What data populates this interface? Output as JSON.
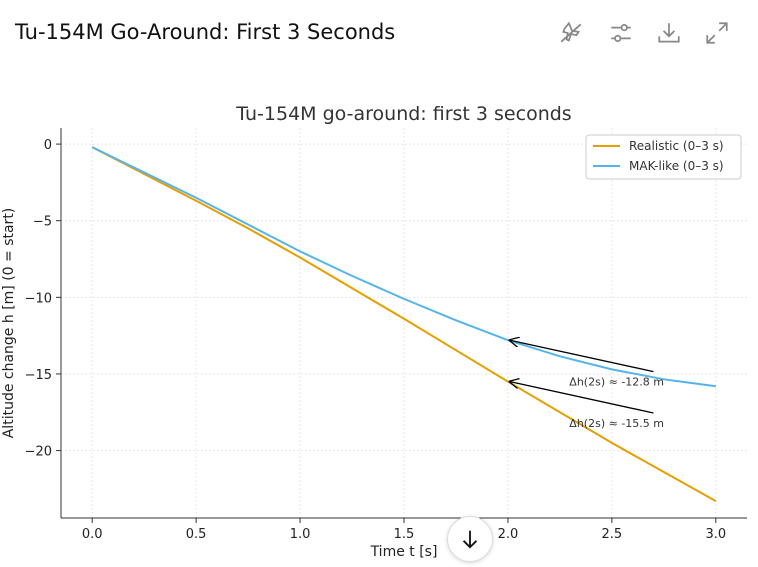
{
  "header": {
    "title": "Tu-154M Go-Around: First 3 Seconds",
    "icons": [
      "airplane-off-icon",
      "sliders-icon",
      "download-icon",
      "expand-icon"
    ]
  },
  "chart_data": {
    "type": "line",
    "title": "Tu-154M go-around: first 3 seconds",
    "xlabel": "Time t [s]",
    "ylabel": "Altitude change h [m] (0 = start)",
    "xlim": [
      -0.15,
      3.15
    ],
    "ylim": [
      -24.4,
      1.05
    ],
    "xticks": [
      0,
      0.5,
      1,
      1.5,
      2,
      2.5,
      3
    ],
    "xtick_labels": [
      "0.0",
      "0.5",
      "1.0",
      "1.5",
      "2.0",
      "2.5",
      "3.0"
    ],
    "yticks": [
      0,
      -5,
      -10,
      -15,
      -20
    ],
    "ytick_labels": [
      "0",
      "−5",
      "−10",
      "−15",
      "−20"
    ],
    "grid": true,
    "legend_position": "top-right",
    "x": [
      0,
      0.25,
      0.5,
      0.75,
      1,
      1.25,
      1.5,
      1.75,
      2,
      2.25,
      2.5,
      2.75,
      3
    ],
    "series": [
      {
        "name": "Realistic (0–3 s)",
        "color": "#e69f00",
        "values": [
          -0.2,
          -1.95,
          -3.7,
          -5.5,
          -7.4,
          -9.4,
          -11.4,
          -13.45,
          -15.5,
          -17.5,
          -19.5,
          -21.4,
          -23.3
        ]
      },
      {
        "name": "MAK-like (0–3 s)",
        "color": "#56b4e9",
        "values": [
          -0.2,
          -1.85,
          -3.5,
          -5.25,
          -7.0,
          -8.6,
          -10.1,
          -11.5,
          -12.8,
          -13.85,
          -14.7,
          -15.35,
          -15.8
        ]
      }
    ],
    "annotations": [
      {
        "text": "Δh(2s) ≈ -12.8 m",
        "x": 2,
        "y": -12.8,
        "text_x": 2.3,
        "text_y": -15.5
      },
      {
        "text": "Δh(2s) ≈ -15.5 m",
        "x": 2,
        "y": -15.5,
        "text_x": 2.3,
        "text_y": -18.2
      }
    ]
  }
}
